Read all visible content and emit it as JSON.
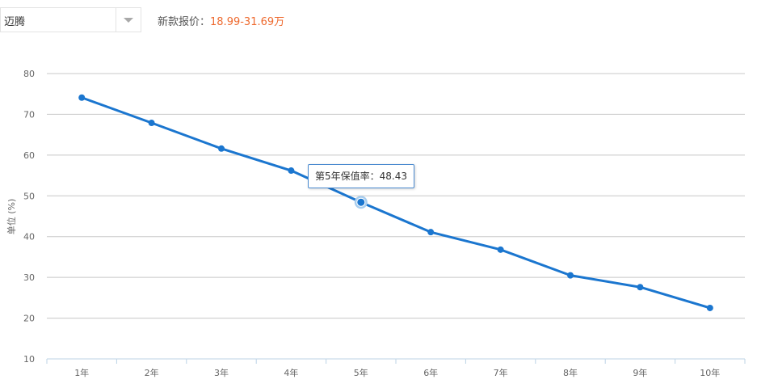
{
  "selector": {
    "value": "迈腾"
  },
  "price": {
    "label": "新款报价：",
    "value": "18.99-31.69万"
  },
  "tooltip": {
    "text": "第5年保值率：48.43"
  },
  "colors": {
    "line": "#1b76cf",
    "price": "#ee6a2f",
    "grid": "#c8c8c8"
  },
  "chart_data": {
    "type": "line",
    "title": "",
    "xlabel": "",
    "ylabel": "单位 (%)",
    "categories": [
      "1年",
      "2年",
      "3年",
      "4年",
      "5年",
      "6年",
      "7年",
      "8年",
      "9年",
      "10年"
    ],
    "series": [
      {
        "values": [
          74.1,
          67.9,
          61.6,
          56.2,
          48.43,
          41.1,
          36.8,
          30.5,
          27.6,
          22.5
        ]
      }
    ],
    "yticks": [
      10,
      20,
      30,
      40,
      50,
      60,
      70,
      80
    ],
    "ylim": [
      10,
      80
    ],
    "grid": true,
    "highlighted_index": 4
  }
}
